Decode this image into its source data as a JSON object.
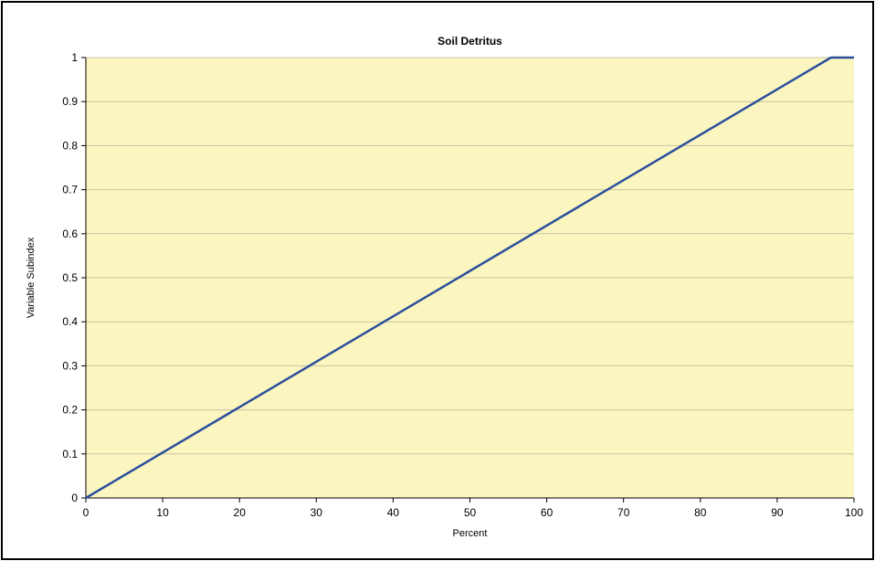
{
  "chart_data": {
    "type": "line",
    "title": "Soil Detritus",
    "xlabel": "Percent",
    "ylabel": "Variable Subindex",
    "xlim": [
      0,
      100
    ],
    "ylim": [
      0,
      1
    ],
    "x_ticks": [
      "0",
      "10",
      "20",
      "30",
      "40",
      "50",
      "60",
      "70",
      "80",
      "90",
      "100"
    ],
    "y_ticks": [
      "0",
      "0.1",
      "0.2",
      "0.3",
      "0.4",
      "0.5",
      "0.6",
      "0.7",
      "0.8",
      "0.9",
      "1"
    ],
    "grid": "horizontal",
    "legend": "none",
    "series": [
      {
        "x": [
          0,
          97,
          100
        ],
        "y": [
          0,
          1,
          1
        ],
        "color": "#2b4f9c"
      }
    ],
    "plot_background": "#fbf6c0",
    "gridline_color": "#c8c4a0"
  }
}
